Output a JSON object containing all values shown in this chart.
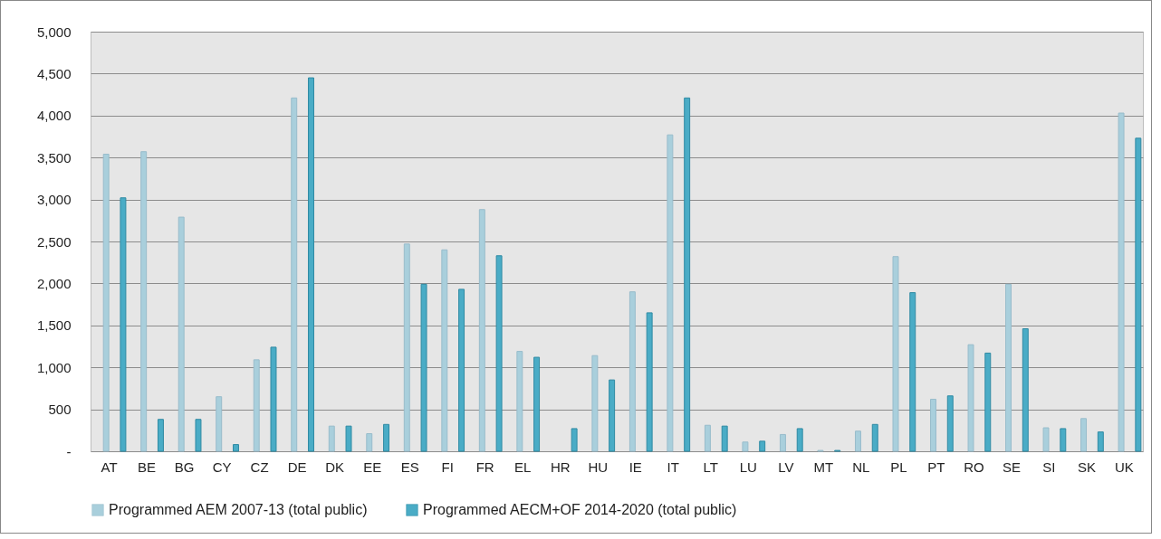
{
  "chart_data": {
    "type": "bar",
    "categories": [
      "AT",
      "BE",
      "BG",
      "CY",
      "CZ",
      "DE",
      "DK",
      "EE",
      "ES",
      "FI",
      "FR",
      "EL",
      "HR",
      "HU",
      "IE",
      "IT",
      "LT",
      "LU",
      "LV",
      "MT",
      "NL",
      "PL",
      "PT",
      "RO",
      "SE",
      "SI",
      "SK",
      "UK"
    ],
    "series": [
      {
        "name": "Programmed AEM 2007-13 (total public)",
        "color": "#a9cfdc",
        "values": [
          3540,
          3570,
          2790,
          650,
          1090,
          4210,
          300,
          210,
          2470,
          2400,
          2880,
          1190,
          null,
          1140,
          1900,
          3770,
          310,
          110,
          200,
          10,
          240,
          2320,
          620,
          1270,
          1990,
          280,
          390,
          4030
        ]
      },
      {
        "name": "Programmed AECM+OF 2014-2020 (total public)",
        "color": "#4aacc6",
        "values": [
          3020,
          380,
          380,
          80,
          1240,
          4450,
          300,
          320,
          1990,
          1930,
          2330,
          1120,
          270,
          850,
          1650,
          4210,
          300,
          120,
          270,
          10,
          320,
          1890,
          660,
          1170,
          1460,
          270,
          230,
          3730
        ]
      }
    ],
    "ylim": [
      0,
      5000
    ],
    "yticks": [
      {
        "value": 0,
        "label": "-"
      },
      {
        "value": 500,
        "label": "500"
      },
      {
        "value": 1000,
        "label": "1,000"
      },
      {
        "value": 1500,
        "label": "1,500"
      },
      {
        "value": 2000,
        "label": "2,000"
      },
      {
        "value": 2500,
        "label": "2,500"
      },
      {
        "value": 3000,
        "label": "3,000"
      },
      {
        "value": 3500,
        "label": "3,500"
      },
      {
        "value": 4000,
        "label": "4,000"
      },
      {
        "value": 4500,
        "label": "4,500"
      },
      {
        "value": 5000,
        "label": "5,000"
      }
    ],
    "grid": "y",
    "legend": "bottom"
  }
}
